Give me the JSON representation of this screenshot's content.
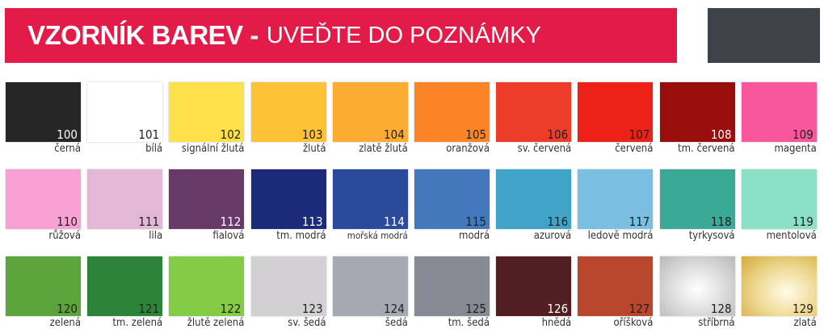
{
  "header": {
    "title_bold": "VZORNÍK BAREV -",
    "title_rest": "UVEĎTE DO POZNÁMKY",
    "accent": "#e31b48",
    "side_box_color": "#3e434a"
  },
  "swatches": [
    {
      "code": "100",
      "name": "černá",
      "color": "#262626",
      "light_text": true
    },
    {
      "code": "101",
      "name": "bílá",
      "color": "#ffffff"
    },
    {
      "code": "102",
      "name": "signální žlutá",
      "color": "#fde04a"
    },
    {
      "code": "103",
      "name": "žlutá",
      "color": "#fdc136"
    },
    {
      "code": "104",
      "name": "zlatě žlutá",
      "color": "#fcab33"
    },
    {
      "code": "105",
      "name": "oranžová",
      "color": "#fb8526"
    },
    {
      "code": "106",
      "name": "sv. červená",
      "color": "#ee3c2b"
    },
    {
      "code": "107",
      "name": "červená",
      "color": "#ee2118"
    },
    {
      "code": "108",
      "name": "tm. červená",
      "color": "#9a0d0d",
      "light_text": true
    },
    {
      "code": "109",
      "name": "magenta",
      "color": "#f9579b"
    },
    {
      "code": "110",
      "name": "růžová",
      "color": "#f9a0d4"
    },
    {
      "code": "111",
      "name": "lila",
      "color": "#e2b8d6"
    },
    {
      "code": "112",
      "name": "fialová",
      "color": "#673a67",
      "light_text": true
    },
    {
      "code": "113",
      "name": "tm. modrá",
      "color": "#1b2b7a",
      "light_text": true
    },
    {
      "code": "114",
      "name": "mořská modrá",
      "color": "#2c4a9c",
      "light_text": true
    },
    {
      "code": "115",
      "name": "modrá",
      "color": "#4478bd"
    },
    {
      "code": "116",
      "name": "azurová",
      "color": "#40a3c8"
    },
    {
      "code": "117",
      "name": "ledově modrá",
      "color": "#78bfe1"
    },
    {
      "code": "118",
      "name": "tyrkysová",
      "color": "#3aa995"
    },
    {
      "code": "119",
      "name": "mentolová",
      "color": "#8be0c6"
    },
    {
      "code": "120",
      "name": "zelená",
      "color": "#5ba43c"
    },
    {
      "code": "121",
      "name": "tm. zelená",
      "color": "#2b8437"
    },
    {
      "code": "122",
      "name": "žlutě zelená",
      "color": "#84cc45"
    },
    {
      "code": "123",
      "name": "sv. šedá",
      "color": "#d2d0d2"
    },
    {
      "code": "124",
      "name": "šedá",
      "color": "#a5a9b2"
    },
    {
      "code": "125",
      "name": "tm. šedá",
      "color": "#868a93"
    },
    {
      "code": "126",
      "name": "hnědá",
      "color": "#521f20",
      "light_text": true
    },
    {
      "code": "127",
      "name": "oříšková",
      "color": "#b9472e"
    },
    {
      "code": "128",
      "name": "stříbrná",
      "color": "radial-gradient(ellipse at 50% 55%,#ffffff 0%,#e4e4e4 40%,#b8b8b8 100%)"
    },
    {
      "code": "129",
      "name": "zlatá",
      "color": "radial-gradient(ellipse at 60% 60%,#fffbe8 0%,#f0dc9a 45%,#d4aa3a 100%)"
    }
  ]
}
